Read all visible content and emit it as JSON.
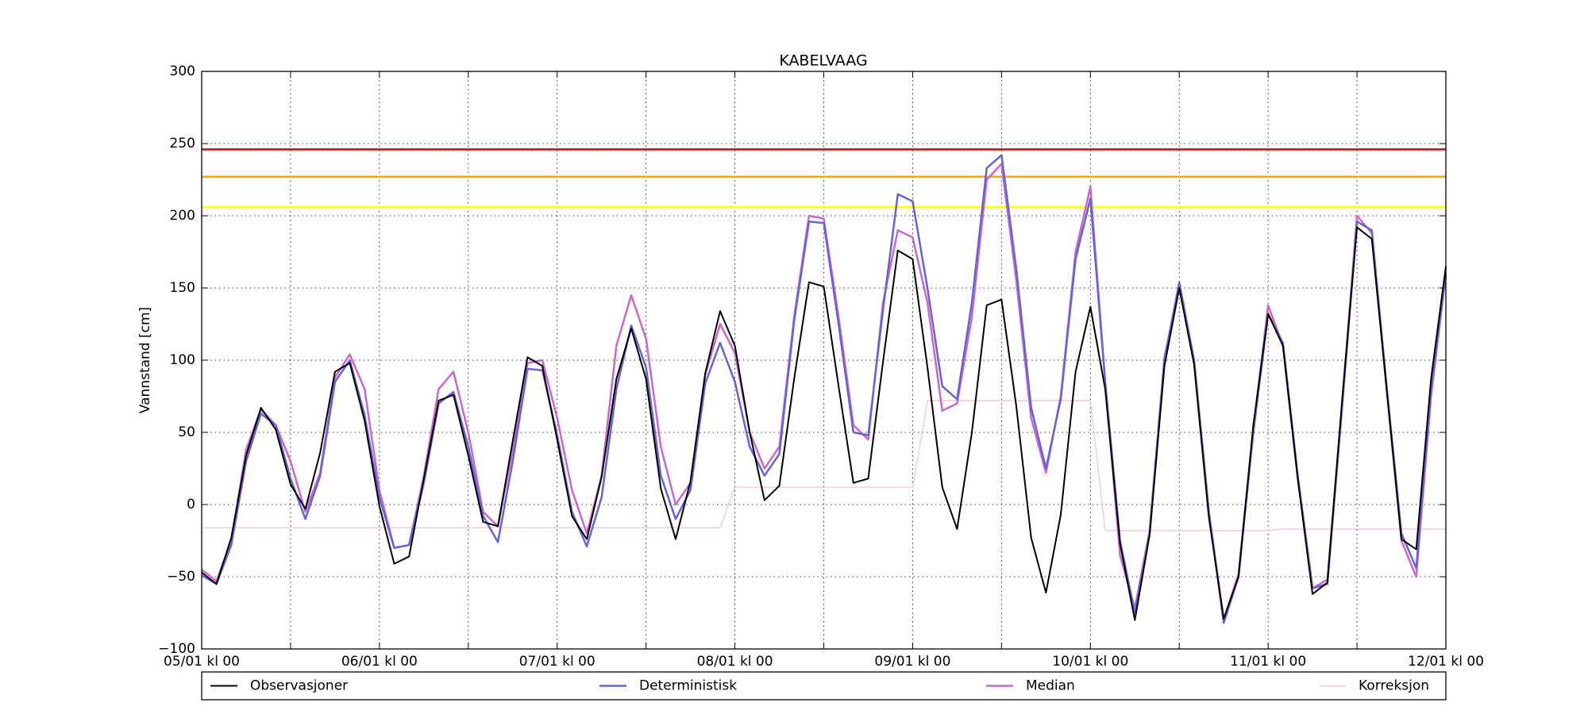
{
  "chart_data": {
    "type": "line",
    "title": "KABELVAAG",
    "y_label": "Vannstand [cm]",
    "x": [
      0,
      2,
      4,
      6,
      8,
      10,
      12,
      14,
      16,
      18,
      20,
      22,
      24,
      26,
      28,
      30,
      32,
      34,
      36,
      38,
      40,
      42,
      44,
      46,
      48,
      50,
      52,
      54,
      56,
      58,
      60,
      62,
      64,
      66,
      68,
      70,
      72,
      74,
      76,
      78,
      80,
      82,
      84,
      86,
      88,
      90,
      92,
      94,
      96,
      98,
      100,
      102,
      104,
      106,
      108,
      110,
      112,
      114,
      116,
      118,
      120,
      122,
      124,
      126,
      128,
      130,
      132,
      134,
      136,
      138,
      140,
      142,
      144,
      146,
      148,
      150,
      152,
      154,
      156,
      158,
      160,
      162,
      164,
      166,
      168
    ],
    "xlim": [
      0,
      168
    ],
    "xticks": [
      {
        "value": 0,
        "label": "05/01 kl 00"
      },
      {
        "value": 24,
        "label": "06/01 kl 00"
      },
      {
        "value": 48,
        "label": "07/01 kl 00"
      },
      {
        "value": 72,
        "label": "08/01 kl 00"
      },
      {
        "value": 96,
        "label": "09/01 kl 00"
      },
      {
        "value": 120,
        "label": "10/01 kl 00"
      },
      {
        "value": 144,
        "label": "11/01 kl 00"
      },
      {
        "value": 168,
        "label": "12/01 kl 00"
      }
    ],
    "xminor_ticks": [
      12,
      36,
      60,
      84,
      108,
      132,
      156
    ],
    "ylim": [
      -100,
      300
    ],
    "yticks": [
      {
        "value": -100,
        "label": "−100"
      },
      {
        "value": -50,
        "label": "−50"
      },
      0,
      50,
      100,
      150,
      200,
      250,
      300
    ],
    "grid": true,
    "thresholds": [
      {
        "value": 246,
        "color": "#ff0000"
      },
      {
        "value": 227,
        "color": "#ffa500"
      },
      {
        "value": 206,
        "color": "#ffff00"
      }
    ],
    "series": [
      {
        "name": "Observasjoner",
        "color": "#000000",
        "width": 2,
        "values": [
          -47,
          -55,
          -23,
          34,
          67,
          52,
          14,
          -3,
          36,
          92,
          98,
          58,
          -1,
          -41,
          -36,
          18,
          72,
          76,
          34,
          -12,
          -15,
          44,
          102,
          96,
          45,
          -8,
          -24,
          19,
          87,
          122,
          87,
          11,
          -24,
          16,
          91,
          134,
          110,
          50,
          3,
          13,
          87,
          154,
          151,
          82,
          15,
          18,
          99,
          176,
          170,
          95,
          12,
          -17,
          50,
          138,
          142,
          68,
          -23,
          -61,
          -7,
          92,
          137,
          80,
          -27,
          -80,
          -21,
          96,
          150,
          97,
          -9,
          -79,
          -50,
          55,
          132,
          110,
          18,
          -62,
          -54,
          73,
          192,
          184,
          80,
          -24,
          -31,
          87,
          165
        ]
      },
      {
        "name": "Deterministisk",
        "color": "#6464d8",
        "width": 2.5,
        "values": [
          -49,
          -55,
          -28,
          30,
          63,
          55,
          18,
          -10,
          20,
          85,
          100,
          62,
          5,
          -30,
          -28,
          15,
          70,
          78,
          40,
          -8,
          -26,
          30,
          94,
          93,
          48,
          -5,
          -29,
          5,
          80,
          124,
          95,
          20,
          -10,
          10,
          84,
          112,
          85,
          40,
          20,
          35,
          127,
          196,
          195,
          125,
          50,
          48,
          135,
          215,
          210,
          150,
          82,
          73,
          140,
          233,
          242,
          163,
          67,
          25,
          73,
          170,
          212,
          85,
          -25,
          -75,
          -20,
          100,
          154,
          100,
          -5,
          -82,
          -50,
          50,
          132,
          112,
          20,
          -58,
          -55,
          68,
          196,
          190,
          82,
          -20,
          -44,
          80,
          160
        ]
      },
      {
        "name": "Median",
        "color": "#cc66cc",
        "width": 2.5,
        "values": [
          -45,
          -53,
          -25,
          38,
          66,
          55,
          30,
          -5,
          22,
          88,
          104,
          80,
          10,
          -30,
          -28,
          20,
          80,
          92,
          50,
          -5,
          -15,
          38,
          98,
          100,
          60,
          10,
          -20,
          20,
          110,
          145,
          115,
          40,
          0,
          15,
          90,
          125,
          105,
          50,
          25,
          40,
          130,
          200,
          198,
          130,
          55,
          45,
          140,
          190,
          185,
          140,
          65,
          70,
          130,
          225,
          236,
          155,
          60,
          22,
          75,
          175,
          220,
          85,
          -35,
          -72,
          -18,
          102,
          152,
          100,
          -5,
          -80,
          -48,
          52,
          138,
          110,
          18,
          -58,
          -52,
          70,
          200,
          188,
          80,
          -25,
          -50,
          75,
          160
        ]
      },
      {
        "name": "Korreksjon",
        "color": "#f2c4cc",
        "width": 1.3,
        "values": [
          -16,
          -16,
          -16,
          -16,
          -16,
          -16,
          -16,
          -16,
          -16,
          -16,
          -16,
          -16,
          -16,
          -16,
          -16,
          -16,
          -16,
          -16,
          -16,
          -16,
          -16,
          -16,
          -16,
          -16,
          -16,
          -16,
          -16,
          -16,
          -16,
          -16,
          -16,
          -16,
          -16,
          -16,
          -16,
          -16,
          12,
          12,
          12,
          12,
          12,
          12,
          12,
          12,
          12,
          12,
          12,
          12,
          12,
          72,
          72,
          72,
          72,
          72,
          72,
          72,
          72,
          72,
          72,
          72,
          72,
          -18,
          -18,
          -18,
          -18,
          -18,
          -18,
          -18,
          -18,
          -18,
          -18,
          -18,
          -18,
          -17,
          -17,
          -17,
          -17,
          -17,
          -17,
          -17,
          -17,
          -17,
          -17,
          -17,
          -17
        ]
      }
    ]
  }
}
